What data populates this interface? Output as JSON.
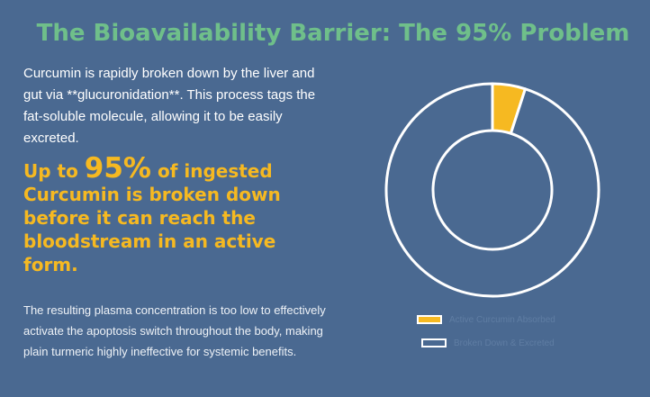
{
  "title": "The Bioavailability Barrier: The 95% Problem",
  "intro_text": "Curcumin is rapidly broken down by the liver and gut via **glucuronidation**. This process tags the fat-soluble molecule, allowing it to be easily excreted.",
  "highlight": {
    "prefix": "Up to ",
    "number": "95%",
    "suffix": " of ingested Curcumin is broken down before it can reach the bloodstream in an active form."
  },
  "footnote": "The resulting plasma concentration is too low to effectively activate the apoptosis switch throughout the body, making plain turmeric highly ineffective for systemic benefits.",
  "colors": {
    "background": "#4a6991",
    "title": "#6fbf8a",
    "accent": "#f6b921",
    "ring_fill": "#4a6991",
    "ring_stroke": "#ffffff"
  },
  "chart_data": {
    "type": "pie",
    "variant": "donut",
    "title": "",
    "categories": [
      "Active Curcumin Absorbed",
      "Broken Down & Excreted"
    ],
    "values": [
      5,
      95
    ],
    "colors": [
      "#f6b921",
      "#4a6991"
    ],
    "legend_position": "bottom-right"
  }
}
